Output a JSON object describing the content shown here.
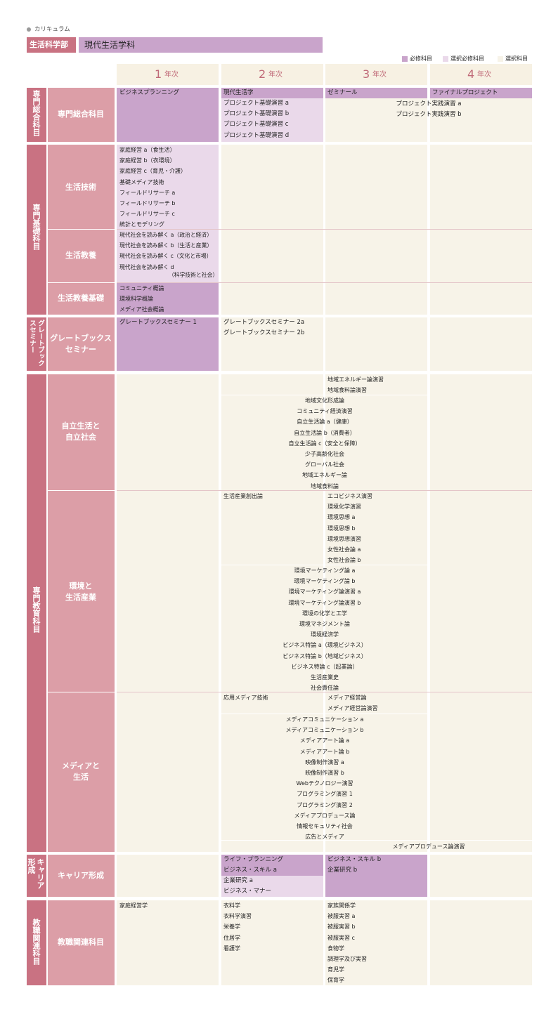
{
  "colors": {
    "required": "#c9a4cb",
    "elective_required": "#ead9ea",
    "elective": "#f7f3e8",
    "side_dark": "#c97282",
    "side_mid": "#dc9ea7",
    "header": "#f7f1e3",
    "accent_text": "#c06a78"
  },
  "header": {
    "section": "カリキュラム",
    "faculty": "生活科学部",
    "department": "現代生活学科",
    "legend": {
      "required": "必修科目",
      "elective_required": "選択必修科目",
      "elective": "選択科目"
    },
    "years": [
      {
        "num": "1",
        "label": "年次"
      },
      {
        "num": "2",
        "label": "年次"
      },
      {
        "num": "3",
        "label": "年次"
      },
      {
        "num": "4",
        "label": "年次"
      }
    ]
  },
  "groups": {
    "g1": "専門総合科目",
    "g2": "専門基礎科目",
    "g3": "グレートブックスセミナー",
    "g4": "専門教育科目",
    "g5": "キャリア形成",
    "g6": "教職関連科目"
  },
  "subs": {
    "s1": "専門総合科目",
    "s2": "生活技術",
    "s3": "生活教養",
    "s4": "生活教養基礎",
    "s5": [
      "グレートブックス",
      "セミナー"
    ],
    "s6": [
      "自立生活と",
      "自立社会"
    ],
    "s7": [
      "環境と",
      "生活産業"
    ],
    "s8": [
      "メディアと",
      "生活"
    ],
    "s9": "キャリア形成",
    "s10": "教職関連科目"
  },
  "courses": {
    "c1": [
      "ビジネスプランニング"
    ],
    "c2a": [
      "現代生活学"
    ],
    "c2b": [
      "プロジェクト基礎演習 a",
      "プロジェクト基礎演習 b",
      "プロジェクト基礎演習 c",
      "プロジェクト基礎演習 d"
    ],
    "c3": [
      "ゼミナール"
    ],
    "c4": [
      "ファイナルプロジェクト"
    ],
    "c34": [
      "プロジェクト実践演習 a",
      "プロジェクト実践演習 b"
    ],
    "life_tech": [
      "家庭経営 a（食生活）",
      "家庭経営 b（衣環境）",
      "家庭経営 c（育児・介護）",
      "基礎メディア技術",
      "フィールドリサーチ a",
      "フィールドリサーチ b",
      "フィールドリサーチ c",
      "統計とモデリング"
    ],
    "life_culture": [
      "現代社会を読み解く a（政治と経済）",
      "現代社会を読み解く b（生活と産業）",
      "現代社会を読み解く c（文化と市場）",
      "現代社会を読み解く d"
    ],
    "life_culture_note": "（科学技術と社会）",
    "life_basic": [
      "コミュニティ概論",
      "環境科学概論",
      "メディア社会概論"
    ],
    "gb1": [
      "グレートブックスセミナー 1"
    ],
    "gb2": [
      "グレートブックスセミナー 2a",
      "グレートブックスセミナー 2b"
    ],
    "indep3": [
      "地域エネルギー論演習",
      "地域食料論演習"
    ],
    "indep23": [
      "地域文化形成論",
      "コミュニティ経済演習",
      "自立生活論 a（健康）",
      "自立生活論 b（消費者）",
      "自立生活論 c（安全と保障）",
      "少子高齢化社会",
      "グローバル社会",
      "地域エネルギー論",
      "地域食料論"
    ],
    "env2": [
      "生活産業創出論"
    ],
    "env3": [
      "エコビジネス演習",
      "環境化学演習",
      "環境思想 a",
      "環境思想 b",
      "環境思想演習",
      "女性社会論 a",
      "女性社会論 b"
    ],
    "env23": [
      "環境マーケティング論 a",
      "環境マーケティング論 b",
      "環境マーケティング論演習 a",
      "環境マーケティング論演習 b",
      "環境の化学と工学",
      "環境マネジメント論",
      "環境経済学",
      "ビジネス特論 a（環境ビジネス）",
      "ビジネス特論 b（地域ビジネス）",
      "ビジネス特論 c（起業論）",
      "生活産業史",
      "社会責任論"
    ],
    "media2": [
      "応用メディア技術"
    ],
    "media3": [
      "メディア経営論",
      "メディア経営論演習"
    ],
    "media23": [
      "メディアコミュニケーション a",
      "メディアコミュニケーション b",
      "メディアアート論 a",
      "メディアアート論 b",
      "映像制作演習 a",
      "映像制作演習 b",
      "Webテクノロジー演習",
      "プログラミング演習 1",
      "プログラミング演習 2",
      "メディアプロデュース論",
      "情報セキュリティ社会",
      "広告とメディア"
    ],
    "media34": [
      "メディアプロデュース論演習"
    ],
    "career2_req": [
      "ライフ・プランニング",
      "ビジネス・スキル a"
    ],
    "career2_el": [
      "企業研究 a",
      "ビジネス・マナー"
    ],
    "career3": [
      "ビジネス・スキル b",
      "企業研究 b"
    ],
    "teach1": [
      "家庭経営学"
    ],
    "teach2": [
      "衣料学",
      "衣料学演習",
      "栄養学",
      "住居学",
      "看護学"
    ],
    "teach3": [
      "家族関係学",
      "被服実習 a",
      "被服実習 b",
      "被服実習 c",
      "食物学",
      "調理学及び実習",
      "育児学",
      "保育学"
    ]
  }
}
